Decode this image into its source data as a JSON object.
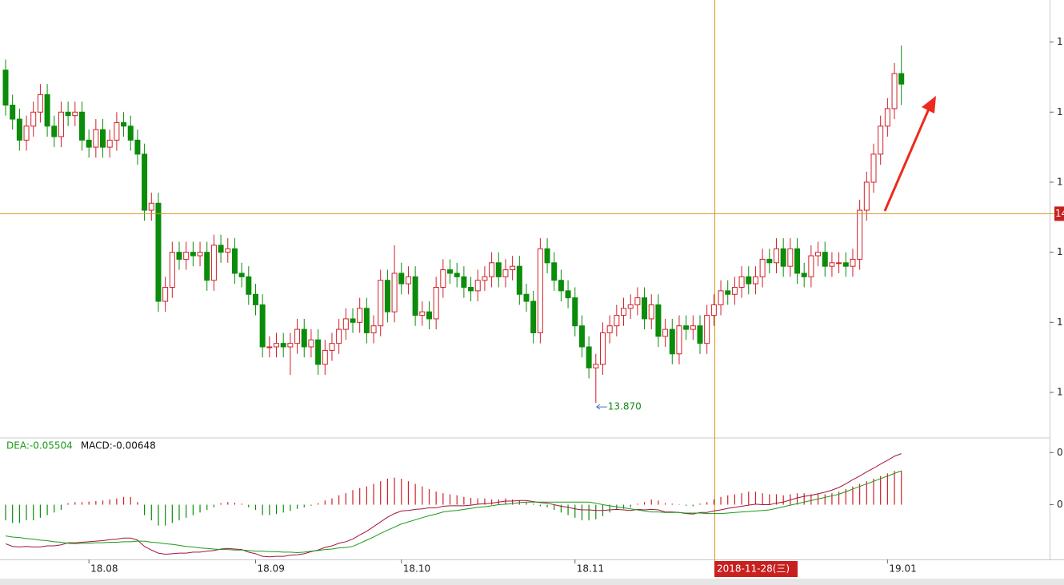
{
  "chart_data": [
    {
      "type": "candlestick",
      "categories": [
        null,
        null,
        null,
        null,
        null,
        null,
        null,
        null,
        null,
        null,
        null,
        null,
        "18.08",
        null,
        null,
        null,
        null,
        null,
        null,
        null,
        null,
        null,
        null,
        null,
        null,
        null,
        null,
        null,
        null,
        null,
        null,
        null,
        null,
        null,
        null,
        null,
        "18.09",
        null,
        null,
        null,
        null,
        null,
        null,
        null,
        null,
        null,
        null,
        null,
        null,
        null,
        null,
        null,
        null,
        null,
        null,
        null,
        null,
        "18.10",
        null,
        null,
        null,
        null,
        null,
        null,
        null,
        null,
        null,
        null,
        null,
        null,
        null,
        null,
        null,
        null,
        null,
        null,
        null,
        null,
        null,
        null,
        null,
        null,
        "18.11",
        null,
        null,
        null,
        null,
        null,
        null,
        null,
        null,
        null,
        null,
        null,
        null,
        null,
        null,
        null,
        null,
        null,
        null,
        null,
        null,
        null,
        null,
        null,
        null,
        null,
        null,
        null,
        null,
        null,
        null,
        null,
        null,
        null,
        null,
        null,
        null,
        null,
        null,
        null,
        null,
        null,
        null,
        null,
        null,
        "19.01",
        null,
        null
      ],
      "open": [
        14.82,
        14.72,
        14.68,
        14.62,
        14.66,
        14.7,
        14.75,
        14.66,
        14.63,
        14.7,
        14.69,
        14.7,
        14.62,
        14.6,
        14.65,
        14.6,
        14.62,
        14.67,
        14.66,
        14.62,
        14.58,
        14.42,
        14.44,
        14.16,
        14.2,
        14.3,
        14.28,
        14.3,
        14.29,
        14.3,
        14.22,
        14.32,
        14.3,
        14.31,
        14.24,
        14.23,
        14.18,
        14.15,
        14.03,
        14.03,
        14.04,
        14.03,
        14.04,
        14.08,
        14.03,
        14.05,
        13.98,
        14.02,
        14.04,
        14.08,
        14.11,
        14.1,
        14.14,
        14.07,
        14.09,
        14.22,
        14.13,
        14.24,
        14.21,
        14.23,
        14.12,
        14.13,
        14.11,
        14.2,
        14.25,
        14.24,
        14.23,
        14.2,
        14.19,
        14.22,
        14.23,
        14.27,
        14.23,
        14.25,
        14.26,
        14.18,
        14.16,
        14.07,
        14.31,
        14.27,
        14.22,
        14.19,
        14.17,
        14.09,
        14.03,
        13.97,
        13.98,
        14.07,
        14.09,
        14.12,
        14.14,
        14.15,
        14.17,
        14.11,
        14.15,
        14.06,
        14.08,
        14.01,
        14.09,
        14.08,
        14.09,
        14.04,
        14.12,
        14.15,
        14.19,
        14.18,
        14.2,
        14.23,
        14.21,
        14.23,
        14.28,
        14.27,
        14.31,
        14.26,
        14.31,
        14.24,
        14.23,
        14.29,
        14.3,
        14.26,
        14.27,
        14.27,
        14.26,
        14.28,
        14.42,
        14.5,
        14.58,
        14.66,
        14.71,
        14.81
      ],
      "high": [
        14.85,
        14.75,
        14.71,
        14.69,
        14.73,
        14.78,
        14.78,
        14.69,
        14.73,
        14.73,
        14.73,
        14.73,
        14.65,
        14.68,
        14.68,
        14.65,
        14.7,
        14.7,
        14.69,
        14.65,
        14.61,
        14.47,
        14.47,
        14.23,
        14.33,
        14.33,
        14.33,
        14.33,
        14.33,
        14.33,
        14.35,
        14.35,
        14.34,
        14.34,
        14.27,
        14.26,
        14.21,
        14.18,
        14.06,
        14.07,
        14.07,
        14.07,
        14.11,
        14.11,
        14.08,
        14.08,
        14.05,
        14.07,
        14.11,
        14.14,
        14.14,
        14.17,
        14.17,
        14.12,
        14.25,
        14.25,
        14.32,
        14.27,
        14.26,
        14.26,
        14.16,
        14.16,
        14.23,
        14.28,
        14.28,
        14.27,
        14.26,
        14.23,
        14.25,
        14.26,
        14.3,
        14.3,
        14.28,
        14.29,
        14.29,
        14.21,
        14.19,
        14.34,
        14.34,
        14.3,
        14.25,
        14.22,
        14.2,
        14.12,
        14.06,
        14.01,
        14.1,
        14.12,
        14.15,
        14.17,
        14.18,
        14.2,
        14.2,
        14.18,
        14.18,
        14.11,
        14.11,
        14.12,
        14.12,
        14.12,
        14.12,
        14.15,
        14.18,
        14.22,
        14.22,
        14.23,
        14.26,
        14.26,
        14.26,
        14.31,
        14.31,
        14.34,
        14.34,
        14.34,
        14.34,
        14.27,
        14.32,
        14.33,
        14.33,
        14.3,
        14.3,
        14.3,
        14.31,
        14.45,
        14.53,
        14.61,
        14.69,
        14.74,
        14.84,
        14.89
      ],
      "low": [
        14.69,
        14.65,
        14.59,
        14.59,
        14.63,
        14.67,
        14.63,
        14.6,
        14.6,
        14.66,
        14.66,
        14.59,
        14.57,
        14.57,
        14.57,
        14.57,
        14.59,
        14.63,
        14.59,
        14.55,
        14.39,
        14.39,
        14.13,
        14.13,
        14.17,
        14.25,
        14.25,
        14.26,
        14.26,
        14.19,
        14.19,
        14.27,
        14.27,
        14.21,
        14.2,
        14.15,
        14.12,
        14.0,
        14.0,
        14.0,
        14.0,
        13.95,
        14.01,
        14.0,
        14.0,
        13.95,
        13.95,
        13.99,
        14.01,
        14.05,
        14.07,
        14.07,
        14.04,
        14.04,
        14.06,
        14.1,
        14.1,
        14.18,
        14.18,
        14.09,
        14.09,
        14.08,
        14.08,
        14.17,
        14.21,
        14.2,
        14.17,
        14.16,
        14.16,
        14.19,
        14.2,
        14.2,
        14.2,
        14.22,
        14.15,
        14.13,
        14.04,
        14.04,
        14.24,
        14.19,
        14.16,
        14.14,
        14.06,
        14.0,
        13.94,
        13.87,
        13.95,
        14.04,
        14.06,
        14.09,
        14.11,
        14.12,
        14.08,
        14.08,
        14.03,
        14.03,
        13.98,
        13.98,
        14.05,
        14.05,
        14.01,
        14.01,
        14.09,
        14.12,
        14.15,
        14.15,
        14.17,
        14.18,
        14.18,
        14.2,
        14.24,
        14.24,
        14.23,
        14.23,
        14.21,
        14.2,
        14.2,
        14.26,
        14.23,
        14.23,
        14.24,
        14.23,
        14.23,
        14.25,
        14.39,
        14.47,
        14.55,
        14.63,
        14.68,
        14.72
      ],
      "close": [
        14.72,
        14.68,
        14.62,
        14.66,
        14.7,
        14.75,
        14.66,
        14.63,
        14.7,
        14.69,
        14.7,
        14.62,
        14.6,
        14.65,
        14.6,
        14.62,
        14.67,
        14.66,
        14.62,
        14.58,
        14.42,
        14.44,
        14.16,
        14.2,
        14.3,
        14.28,
        14.3,
        14.29,
        14.3,
        14.22,
        14.32,
        14.3,
        14.31,
        14.24,
        14.23,
        14.18,
        14.15,
        14.03,
        14.03,
        14.04,
        14.03,
        14.04,
        14.08,
        14.03,
        14.05,
        13.98,
        14.02,
        14.04,
        14.08,
        14.11,
        14.1,
        14.14,
        14.07,
        14.09,
        14.22,
        14.13,
        14.24,
        14.21,
        14.23,
        14.12,
        14.13,
        14.11,
        14.2,
        14.25,
        14.24,
        14.23,
        14.2,
        14.19,
        14.22,
        14.23,
        14.27,
        14.23,
        14.25,
        14.26,
        14.18,
        14.16,
        14.07,
        14.31,
        14.27,
        14.22,
        14.19,
        14.17,
        14.09,
        14.03,
        13.97,
        13.98,
        14.07,
        14.09,
        14.12,
        14.14,
        14.15,
        14.17,
        14.11,
        14.15,
        14.06,
        14.08,
        14.01,
        14.09,
        14.08,
        14.09,
        14.04,
        14.12,
        14.15,
        14.19,
        14.18,
        14.2,
        14.23,
        14.21,
        14.23,
        14.28,
        14.27,
        14.31,
        14.26,
        14.31,
        14.24,
        14.23,
        14.29,
        14.3,
        14.26,
        14.27,
        14.27,
        14.26,
        14.28,
        14.42,
        14.5,
        14.58,
        14.66,
        14.71,
        14.81,
        14.78
      ],
      "up_color": "#d0202a",
      "down_color": "#0b8c0b",
      "ylim": [
        13.77,
        15.02
      ],
      "yticks": [
        {
          "value": 13.9,
          "label": "1"
        },
        {
          "value": 14.1,
          "label": "1"
        },
        {
          "value": 14.3,
          "label": "1"
        },
        {
          "value": 14.5,
          "label": "1"
        },
        {
          "value": 14.7,
          "label": "1"
        },
        {
          "value": 14.9,
          "label": "1"
        }
      ],
      "crosshair": {
        "value": 14.41,
        "label": "14"
      },
      "crosshair_date": "2018-11-28(三)",
      "annotation": {
        "value": 13.87,
        "label": "13.870"
      }
    },
    {
      "type": "macd",
      "legend": [
        {
          "label": "DEA:-0.05504",
          "color": "#1a9a1a"
        },
        {
          "label": "MACD:-0.00648",
          "color": "#111111"
        }
      ],
      "histogram": {
        "up_color": "#d0202a",
        "down_color": "#0b8c0b",
        "values": [
          -0.03,
          -0.035,
          -0.035,
          -0.03,
          -0.03,
          -0.025,
          -0.02,
          -0.015,
          -0.01,
          0.003,
          0.005,
          0.005,
          0.006,
          0.007,
          0.008,
          0.01,
          0.012,
          0.015,
          0.015,
          0.005,
          -0.02,
          -0.03,
          -0.04,
          -0.04,
          -0.035,
          -0.03,
          -0.025,
          -0.02,
          -0.015,
          -0.01,
          -0.005,
          0.003,
          0.005,
          0.004,
          0.002,
          -0.005,
          -0.01,
          -0.02,
          -0.02,
          -0.018,
          -0.015,
          -0.012,
          -0.008,
          -0.005,
          -0.002,
          0.003,
          0.008,
          0.012,
          0.018,
          0.022,
          0.028,
          0.032,
          0.035,
          0.04,
          0.045,
          0.05,
          0.052,
          0.05,
          0.045,
          0.04,
          0.035,
          0.03,
          0.025,
          0.022,
          0.02,
          0.018,
          0.015,
          0.013,
          0.012,
          0.012,
          0.01,
          0.01,
          0.012,
          0.01,
          0.008,
          0.005,
          0.002,
          -0.003,
          -0.005,
          -0.01,
          -0.015,
          -0.02,
          -0.025,
          -0.03,
          -0.03,
          -0.028,
          -0.022,
          -0.015,
          -0.01,
          -0.008,
          -0.005,
          0.002,
          0.005,
          0.01,
          0.008,
          0.003,
          0.002,
          0.001,
          -0.002,
          -0.003,
          0.002,
          0.005,
          0.01,
          0.015,
          0.018,
          0.02,
          0.022,
          0.025,
          0.025,
          0.022,
          0.02,
          0.02,
          0.018,
          0.02,
          0.022,
          0.022,
          0.02,
          0.02,
          0.02,
          0.022,
          0.025,
          0.03,
          0.035,
          0.04,
          0.045,
          0.05,
          0.055,
          0.06,
          0.065,
          0.065
        ]
      },
      "series": [
        {
          "color": "#a0153e",
          "values": [
            -0.075,
            -0.08,
            -0.081,
            -0.08,
            -0.081,
            -0.081,
            -0.079,
            -0.079,
            -0.077,
            -0.073,
            -0.073,
            -0.072,
            -0.071,
            -0.07,
            -0.069,
            -0.067,
            -0.066,
            -0.064,
            -0.064,
            -0.068,
            -0.08,
            -0.087,
            -0.093,
            -0.095,
            -0.094,
            -0.093,
            -0.093,
            -0.091,
            -0.091,
            -0.089,
            -0.088,
            -0.085,
            -0.084,
            -0.085,
            -0.086,
            -0.091,
            -0.094,
            -0.099,
            -0.1,
            -0.099,
            -0.099,
            -0.097,
            -0.096,
            -0.094,
            -0.09,
            -0.087,
            -0.082,
            -0.079,
            -0.074,
            -0.071,
            -0.066,
            -0.058,
            -0.051,
            -0.042,
            -0.033,
            -0.024,
            -0.017,
            -0.012,
            -0.011,
            -0.009,
            -0.008,
            -0.006,
            -0.006,
            -0.003,
            -0.002,
            -0.002,
            -0.002,
            -0.001,
            0.001,
            0.002,
            0.003,
            0.005,
            0.007,
            0.007,
            0.008,
            0.008,
            0.006,
            0.004,
            0.003,
            0.0,
            -0.003,
            -0.005,
            -0.008,
            -0.01,
            -0.01,
            -0.011,
            -0.011,
            -0.01,
            -0.009,
            -0.01,
            -0.011,
            -0.009,
            -0.01,
            -0.009,
            -0.01,
            -0.014,
            -0.014,
            -0.015,
            -0.017,
            -0.018,
            -0.015,
            -0.015,
            -0.012,
            -0.01,
            -0.007,
            -0.005,
            -0.003,
            -0.001,
            0.001,
            0.0,
            0.0,
            0.003,
            0.005,
            0.009,
            0.013,
            0.016,
            0.018,
            0.021,
            0.024,
            0.028,
            0.033,
            0.04,
            0.048,
            0.055,
            0.063,
            0.07,
            0.078,
            0.085,
            0.093,
            0.098
          ]
        },
        {
          "color": "#1a9a1a",
          "values": [
            -0.06,
            -0.062,
            -0.063,
            -0.065,
            -0.066,
            -0.068,
            -0.069,
            -0.071,
            -0.072,
            -0.074,
            -0.075,
            -0.074,
            -0.074,
            -0.073,
            -0.073,
            -0.072,
            -0.072,
            -0.071,
            -0.071,
            -0.07,
            -0.07,
            -0.072,
            -0.073,
            -0.075,
            -0.076,
            -0.078,
            -0.08,
            -0.081,
            -0.083,
            -0.084,
            -0.085,
            -0.086,
            -0.086,
            -0.087,
            -0.087,
            -0.088,
            -0.089,
            -0.089,
            -0.09,
            -0.09,
            -0.091,
            -0.091,
            -0.092,
            -0.091,
            -0.089,
            -0.088,
            -0.086,
            -0.085,
            -0.083,
            -0.082,
            -0.08,
            -0.074,
            -0.068,
            -0.062,
            -0.055,
            -0.049,
            -0.043,
            -0.037,
            -0.033,
            -0.029,
            -0.025,
            -0.021,
            -0.018,
            -0.014,
            -0.012,
            -0.011,
            -0.009,
            -0.007,
            -0.005,
            -0.004,
            -0.002,
            0.0,
            0.001,
            0.002,
            0.004,
            0.005,
            0.005,
            0.005,
            0.005,
            0.005,
            0.005,
            0.005,
            0.005,
            0.005,
            0.005,
            0.003,
            0.0,
            -0.002,
            -0.004,
            -0.006,
            -0.008,
            -0.01,
            -0.012,
            -0.014,
            -0.014,
            -0.015,
            -0.015,
            -0.015,
            -0.016,
            -0.016,
            -0.016,
            -0.017,
            -0.017,
            -0.017,
            -0.016,
            -0.015,
            -0.014,
            -0.013,
            -0.012,
            -0.011,
            -0.01,
            -0.007,
            -0.004,
            -0.001,
            0.002,
            0.005,
            0.008,
            0.011,
            0.014,
            0.017,
            0.02,
            0.025,
            0.03,
            0.035,
            0.04,
            0.045,
            0.05,
            0.055,
            0.06,
            0.065
          ]
        }
      ],
      "ylim": [
        -0.105,
        0.125
      ],
      "yticks": [
        {
          "value": 0.1,
          "label": "0"
        },
        {
          "value": 0,
          "label": "0"
        }
      ]
    }
  ]
}
